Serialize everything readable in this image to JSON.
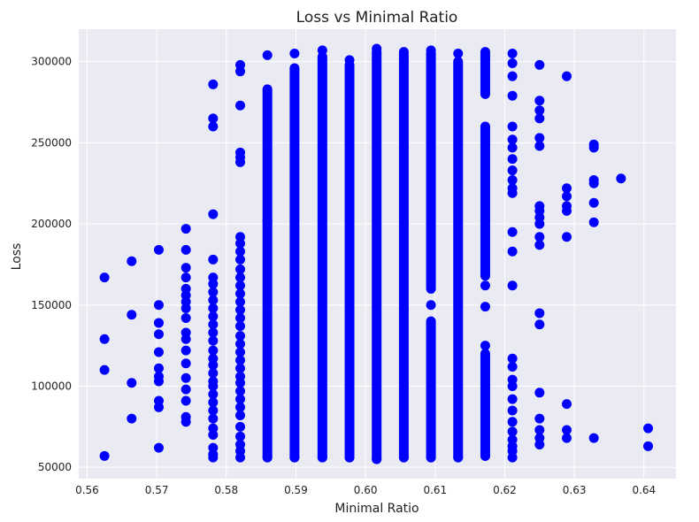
{
  "chart_data": {
    "type": "scatter",
    "title": "Loss vs Minimal Ratio",
    "xlabel": "Minimal Ratio",
    "ylabel": "Loss",
    "xlim": [
      0.5588,
      0.6446
    ],
    "ylim": [
      43000,
      320000
    ],
    "xticks": [
      0.56,
      0.57,
      0.58,
      0.59,
      0.6,
      0.61,
      0.62,
      0.63,
      0.64
    ],
    "xtick_labels": [
      "0.56",
      "0.57",
      "0.58",
      "0.59",
      "0.60",
      "0.61",
      "0.62",
      "0.63",
      "0.64"
    ],
    "yticks": [
      50000,
      100000,
      150000,
      200000,
      250000,
      300000
    ],
    "ytick_labels": [
      "50000",
      "100000",
      "150000",
      "200000",
      "250000",
      "300000"
    ],
    "grid": true,
    "marker_color": "#0000ff",
    "plot_background": "#eaeaf2",
    "columns": [
      {
        "x": 0.5625,
        "y": [
          57000,
          110000,
          129000,
          167000
        ]
      },
      {
        "x": 0.5664,
        "y": [
          80000,
          102000,
          144000,
          177000
        ]
      },
      {
        "x": 0.5703,
        "y": [
          62000,
          87000,
          91000,
          103000,
          106000,
          111000,
          121000,
          132000,
          139000,
          150000,
          184000
        ]
      },
      {
        "x": 0.5742,
        "y": [
          78000,
          81000,
          91000,
          98000,
          105000,
          114000,
          122000,
          129000,
          133000,
          142000,
          148000,
          152000,
          156000,
          160000,
          167000,
          173000,
          184000,
          197000
        ]
      },
      {
        "x": 0.5781,
        "y": [
          56000,
          58000,
          62000,
          70000,
          74000,
          80000,
          85000,
          90000,
          95000,
          100000,
          103000,
          108000,
          113000,
          117000,
          122000,
          128000,
          133000,
          138000,
          143000,
          148000,
          153000,
          158000,
          163000,
          167000,
          178000,
          206000,
          260000,
          265000,
          286000
        ]
      },
      {
        "x": 0.582,
        "y": [
          56000,
          60000,
          64000,
          69000,
          75000,
          82000,
          87000,
          92000,
          97000,
          102000,
          106000,
          111000,
          116000,
          121000,
          126000,
          131000,
          137000,
          142000,
          147000,
          152000,
          157000,
          162000,
          167000,
          172000,
          178000,
          183000,
          188000,
          192000,
          238000,
          241000,
          244000,
          273000,
          294000,
          298000
        ]
      },
      {
        "x": 0.5859,
        "y": [
          56000,
          202000,
          304000
        ]
      },
      {
        "x": 0.5898,
        "y": [
          56000,
          305000
        ]
      },
      {
        "x": 0.5938,
        "y": [
          56000,
          307000
        ]
      },
      {
        "x": 0.5977,
        "y": [
          56000,
          301000
        ]
      },
      {
        "x": 0.6016,
        "y": [
          55000,
          308000
        ]
      },
      {
        "x": 0.6055,
        "y": [
          56000,
          306000
        ]
      },
      {
        "x": 0.6094,
        "y": [
          56000,
          150000,
          307000
        ]
      },
      {
        "x": 0.6133,
        "y": [
          56000,
          305000
        ]
      },
      {
        "x": 0.6172,
        "y": [
          57000,
          125000,
          149000,
          162000,
          306000
        ]
      },
      {
        "x": 0.6211,
        "y": [
          56000,
          60000,
          63000,
          67000,
          72000,
          78000,
          85000,
          92000,
          100000,
          104000,
          112000,
          117000,
          162000,
          183000,
          195000,
          219000,
          222000,
          227000,
          233000,
          240000,
          247000,
          252000,
          260000,
          279000,
          291000,
          299000,
          305000
        ]
      },
      {
        "x": 0.625,
        "y": [
          64000,
          68000,
          73000,
          80000,
          96000,
          138000,
          145000,
          187000,
          192000,
          200000,
          204000,
          208000,
          211000,
          248000,
          253000,
          265000,
          270000,
          276000,
          298000
        ]
      },
      {
        "x": 0.6289,
        "y": [
          68000,
          73000,
          89000,
          192000,
          208000,
          211000,
          217000,
          222000,
          291000
        ]
      },
      {
        "x": 0.6328,
        "y": [
          68000,
          201000,
          213000,
          225000,
          227000,
          247000,
          249000
        ]
      },
      {
        "x": 0.6367,
        "y": [
          228000
        ]
      },
      {
        "x": 0.6406,
        "y": [
          63000,
          74000
        ]
      }
    ],
    "dense_ranges": [
      {
        "x": 0.5859,
        "from": 56000,
        "to": 283000
      },
      {
        "x": 0.5898,
        "from": 56000,
        "to": 296000
      },
      {
        "x": 0.5938,
        "from": 56000,
        "to": 303000
      },
      {
        "x": 0.5977,
        "from": 56000,
        "to": 298000
      },
      {
        "x": 0.6016,
        "from": 55000,
        "to": 306000
      },
      {
        "x": 0.6055,
        "from": 56000,
        "to": 305000
      },
      {
        "x": 0.6094,
        "from": 56000,
        "to": 140000
      },
      {
        "x": 0.6094,
        "from": 160000,
        "to": 305000
      },
      {
        "x": 0.6133,
        "from": 56000,
        "to": 300000
      },
      {
        "x": 0.6172,
        "from": 57000,
        "to": 120000
      },
      {
        "x": 0.6172,
        "from": 168000,
        "to": 260000
      },
      {
        "x": 0.6172,
        "from": 280000,
        "to": 305000
      }
    ]
  }
}
